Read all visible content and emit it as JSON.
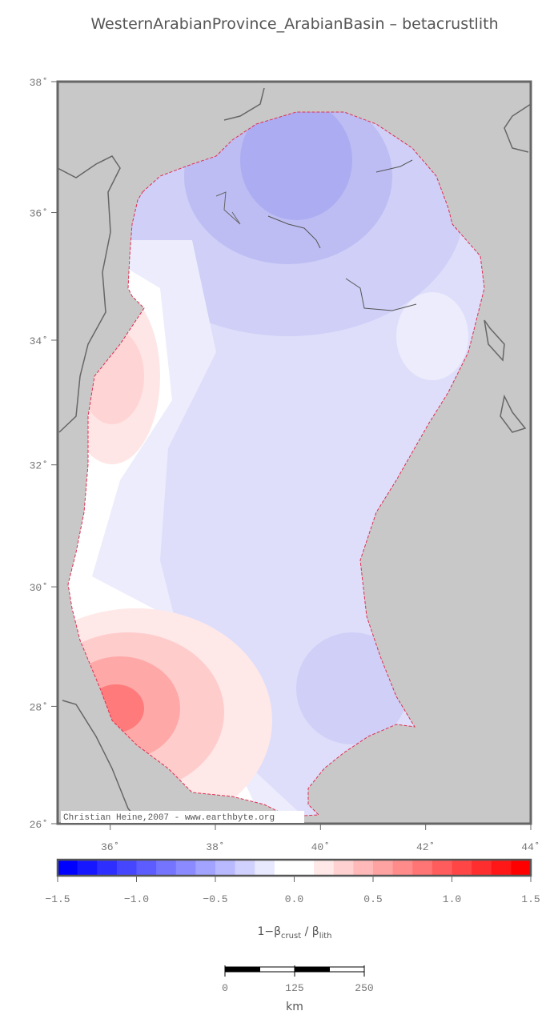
{
  "map": {
    "title": "WesternArabianProvince_ArabianBasin – betacrustlith",
    "xlim": [
      35,
      44
    ],
    "ylim": [
      26,
      38
    ],
    "projection": "mercator",
    "xticks": [
      {
        "value": 36,
        "label": "36˚"
      },
      {
        "value": 38,
        "label": "38˚"
      },
      {
        "value": 40,
        "label": "40˚"
      },
      {
        "value": 42,
        "label": "42˚"
      },
      {
        "value": 44,
        "label": "44˚"
      }
    ],
    "yticks": [
      {
        "value": 26,
        "label": "26˚"
      },
      {
        "value": 28,
        "label": "28˚"
      },
      {
        "value": 30,
        "label": "30˚"
      },
      {
        "value": 32,
        "label": "32˚"
      },
      {
        "value": 34,
        "label": "34˚"
      },
      {
        "value": 36,
        "label": "36˚"
      },
      {
        "value": 38,
        "label": "38˚"
      }
    ],
    "credit": "Christian Heine,2007 - www.earthbyte.org",
    "land_color": "#c8c8c8",
    "colorbar": {
      "lim": [
        -1.5,
        1.5
      ],
      "colormap": [
        "#0000ff",
        "#ffffff",
        "#ff0000"
      ],
      "ticks": [
        {
          "value": -1.5,
          "label": "−1.5"
        },
        {
          "value": -1.0,
          "label": "−1.0"
        },
        {
          "value": -0.5,
          "label": "−0.5"
        },
        {
          "value": 0,
          "label": "0.0"
        },
        {
          "value": 0.5,
          "label": "0.5"
        },
        {
          "value": 1.0,
          "label": "1.0"
        },
        {
          "value": 1.5,
          "label": "1.5"
        }
      ],
      "label": {
        "main": "1−β",
        "sub1": "crust",
        "mid": " / β",
        "sub2": "lith"
      }
    },
    "scalebar": {
      "lim": [
        0,
        250
      ],
      "ticks": [
        0,
        125,
        250
      ],
      "unit": "km"
    }
  }
}
